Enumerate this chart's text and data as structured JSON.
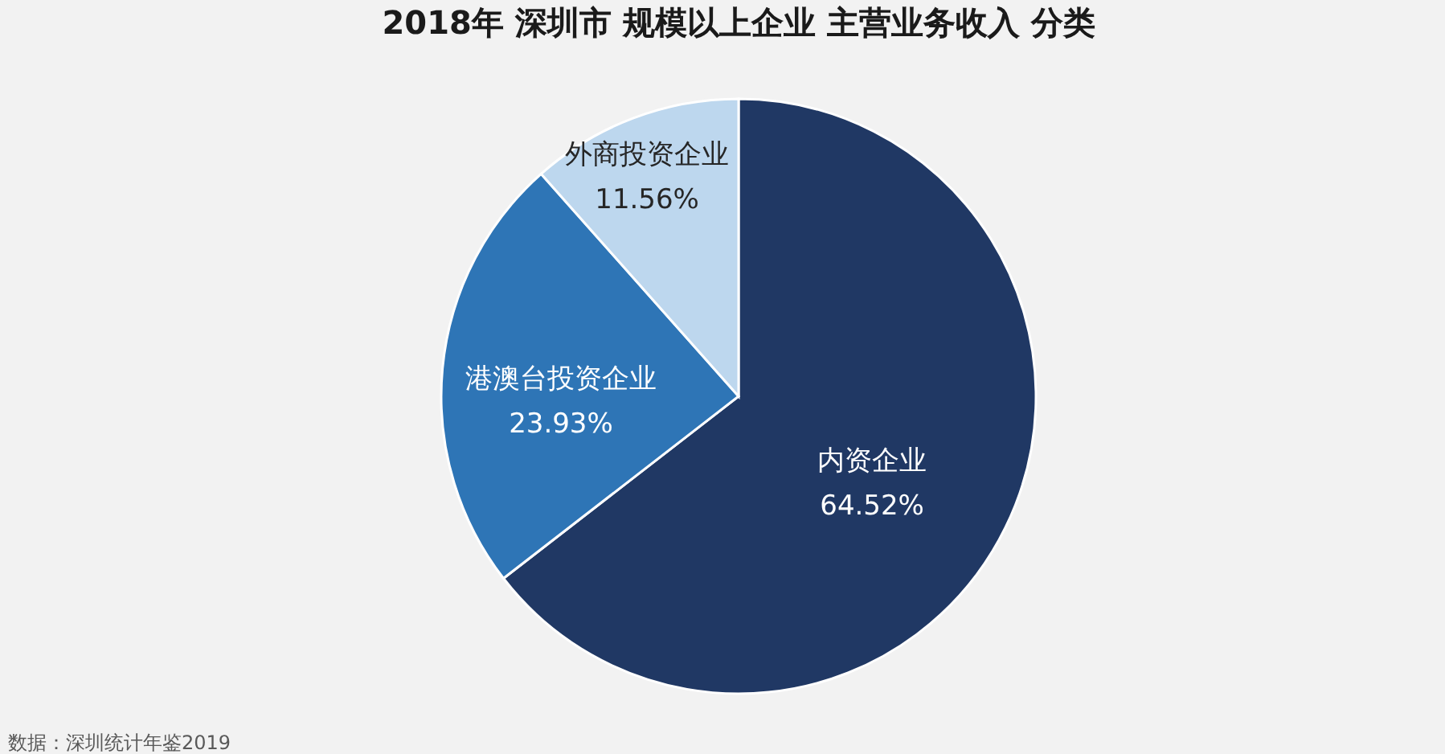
{
  "chart_data": {
    "type": "pie",
    "title": "2018年 深圳市 规模以上企业 主营业务收入 分类",
    "categories": [
      "内资企业",
      "港澳台投资企业",
      "外商投资企业"
    ],
    "values": [
      64.52,
      23.93,
      11.56
    ],
    "value_labels": [
      "64.52%",
      "23.93%",
      "11.56%"
    ],
    "colors": [
      "#203864",
      "#2e75b6",
      "#bdd7ee"
    ],
    "legend": false,
    "annotations": [
      "数据：深圳统计年鉴2019"
    ]
  }
}
